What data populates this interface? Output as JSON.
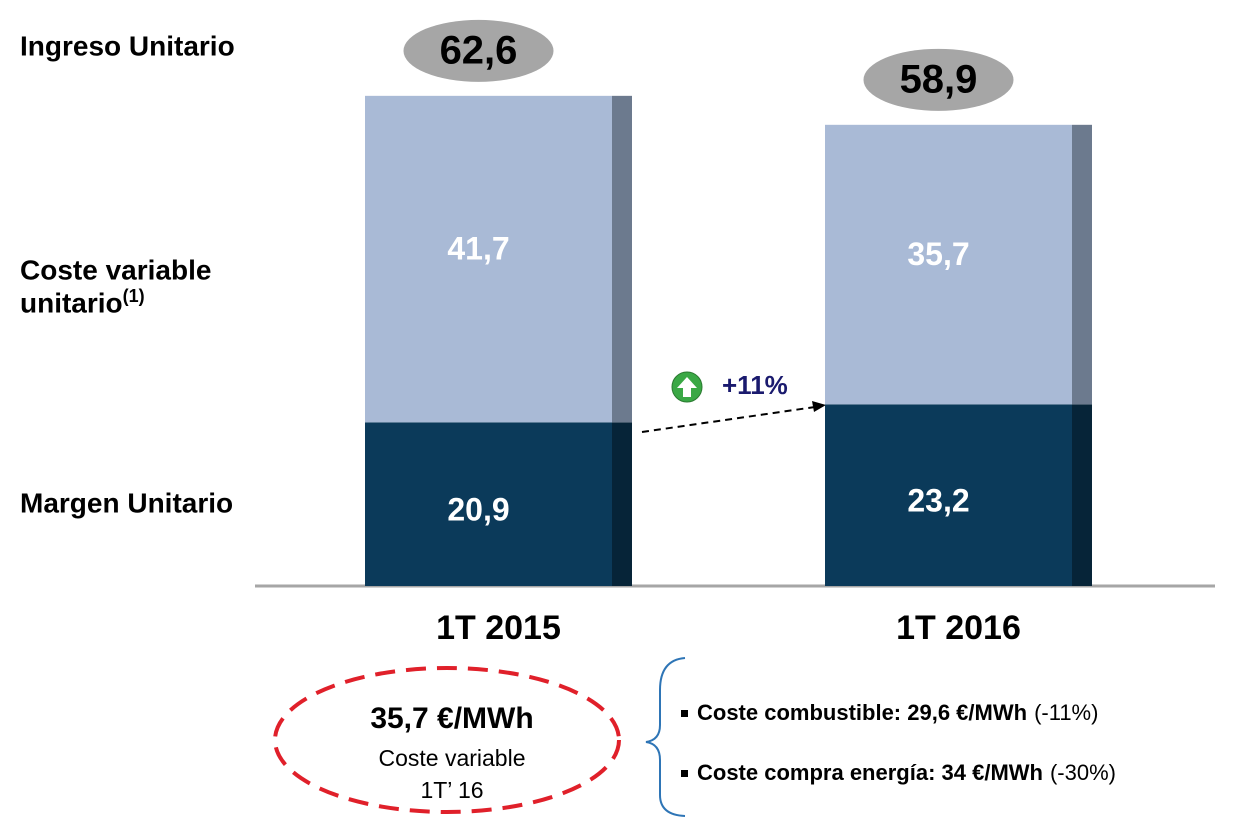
{
  "chart_data": {
    "type": "stacked_bar",
    "categories": [
      "1T 2015",
      "1T 2016"
    ],
    "series": [
      {
        "name": "Margen Unitario",
        "color": "#0b3a5a",
        "values": [
          20.9,
          23.2
        ],
        "value_labels": [
          "20,9",
          "23,2"
        ]
      },
      {
        "name": "Coste variable unitario",
        "footnote": "(1)",
        "color": "#a9bad6",
        "values": [
          41.7,
          35.7
        ],
        "value_labels": [
          "41,7",
          "35,7"
        ]
      }
    ],
    "total_name": "Ingreso Unitario",
    "totals": [
      62.6,
      58.9
    ],
    "total_labels": [
      "62,6",
      "58,9"
    ],
    "total_color": "#a6a6a6",
    "ylim": [
      0,
      65
    ],
    "annotation": "+11%",
    "callout": {
      "value": "35,7 €/MWh",
      "line1": "Coste variable",
      "line2": "1T’ 16"
    },
    "bullets": [
      {
        "bold": "Coste combustible: 29,6 €/MWh",
        "normal": "(-11%)"
      },
      {
        "bold": "Coste compra energía: 34 €/MWh",
        "normal": "(-30%)"
      }
    ]
  }
}
